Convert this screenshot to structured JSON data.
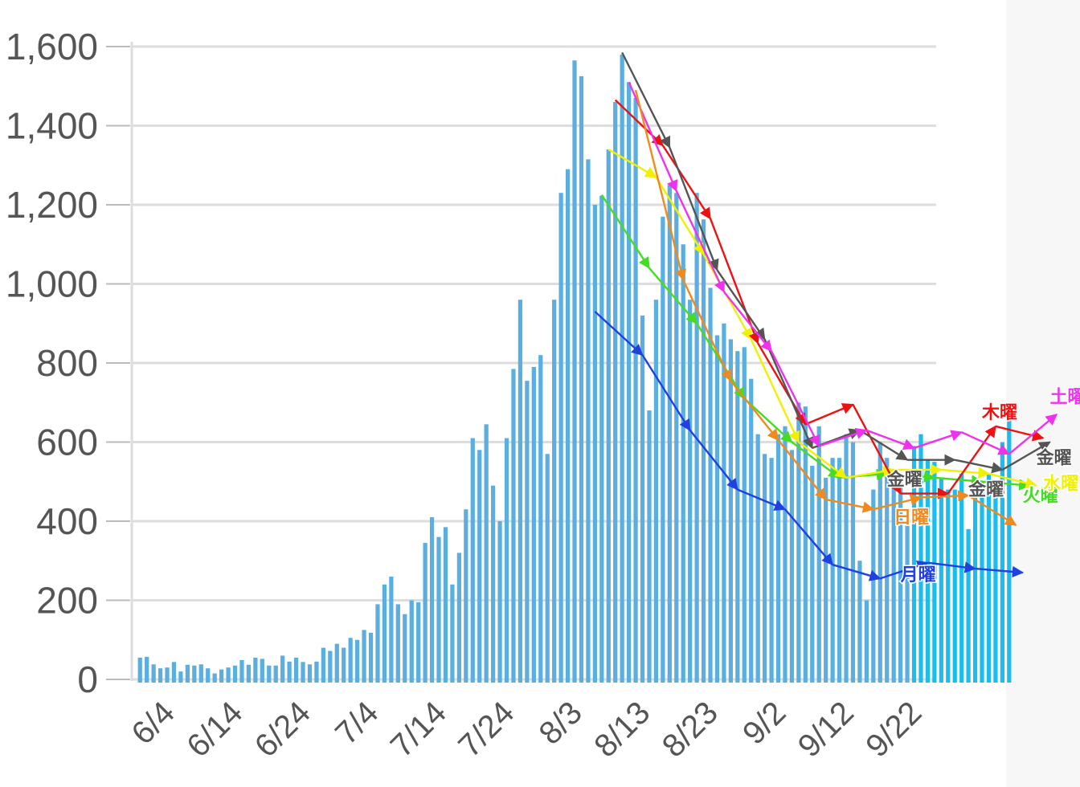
{
  "chart_data": {
    "type": "bar",
    "title": "",
    "xlabel": "",
    "ylabel": "",
    "ylim": [
      0,
      1600
    ],
    "yticks": [
      0,
      200,
      400,
      600,
      800,
      1000,
      1200,
      1400,
      1600
    ],
    "ytick_labels": [
      "0",
      "200",
      "400",
      "600",
      "800",
      "1,000",
      "1,200",
      "1,400",
      "1,600"
    ],
    "grid": true,
    "bar_color": "#5aafe0",
    "recent_bar_color": "#1cbcee",
    "xtick_labels": [
      "6/4",
      "6/14",
      "6/24",
      "7/4",
      "7/14",
      "7/24",
      "8/3",
      "8/13",
      "8/23",
      "9/2",
      "9/12",
      "9/22"
    ],
    "xtick_day_index": [
      3,
      13,
      23,
      33,
      43,
      53,
      63,
      73,
      83,
      93,
      103,
      113
    ],
    "categories_note": "daily, from 6/1",
    "values": [
      55,
      57,
      38,
      28,
      30,
      44,
      20,
      37,
      35,
      38,
      28,
      15,
      25,
      30,
      35,
      49,
      37,
      55,
      52,
      35,
      35,
      60,
      45,
      55,
      44,
      38,
      45,
      80,
      72,
      90,
      80,
      105,
      100,
      125,
      118,
      190,
      240,
      260,
      190,
      165,
      200,
      195,
      345,
      410,
      360,
      385,
      240,
      320,
      430,
      610,
      580,
      645,
      490,
      400,
      610,
      785,
      960,
      755,
      790,
      820,
      570,
      960,
      1230,
      1290,
      1565,
      1525,
      1315,
      1200,
      1223,
      1340,
      1460,
      1580,
      1510,
      1470,
      920,
      680,
      960,
      1170,
      1250,
      1230,
      1100,
      960,
      1230,
      1163,
      990,
      870,
      900,
      860,
      830,
      840,
      760,
      620,
      570,
      560,
      620,
      640,
      580,
      700,
      690,
      540,
      640,
      510,
      560,
      560,
      620,
      600,
      300,
      200,
      480,
      600,
      560,
      510,
      500,
      390
    ],
    "recent_values": [
      590,
      620,
      555,
      550,
      510,
      480,
      480,
      520,
      380,
      480,
      500,
      520,
      480,
      600,
      680
    ],
    "series": [
      {
        "name": "月曜",
        "color": "#2040e0",
        "label_day": 112,
        "label_val": 250,
        "points": [
          [
            67,
            930
          ],
          [
            74,
            820
          ],
          [
            81,
            630
          ],
          [
            88,
            480
          ],
          [
            95,
            430
          ],
          [
            102,
            290
          ],
          [
            109,
            255
          ],
          [
            116,
            295
          ],
          [
            123,
            280
          ],
          [
            130,
            270
          ]
        ]
      },
      {
        "name": "火曜",
        "color": "#44dd22",
        "label_day": 130,
        "label_val": 450,
        "points": [
          [
            68,
            1225
          ],
          [
            75,
            1040
          ],
          [
            82,
            900
          ],
          [
            89,
            710
          ],
          [
            96,
            600
          ],
          [
            103,
            510
          ],
          [
            110,
            520
          ],
          [
            117,
            510
          ],
          [
            124,
            500
          ],
          [
            131,
            490
          ]
        ]
      },
      {
        "name": "水曜",
        "color": "#f0f000",
        "label_day": 133,
        "label_val": 480,
        "points": [
          [
            69,
            1340
          ],
          [
            76,
            1270
          ],
          [
            83,
            1075
          ],
          [
            90,
            860
          ],
          [
            97,
            600
          ],
          [
            104,
            510
          ],
          [
            111,
            530
          ],
          [
            118,
            530
          ],
          [
            125,
            520
          ],
          [
            132,
            490
          ]
        ]
      },
      {
        "name": "木曜",
        "color": "#f01010",
        "label_day": 124,
        "label_val": 660,
        "points": [
          [
            70,
            1465
          ],
          [
            77,
            1350
          ],
          [
            84,
            1165
          ],
          [
            91,
            850
          ],
          [
            98,
            645
          ],
          [
            105,
            695
          ],
          [
            112,
            470
          ],
          [
            119,
            470
          ],
          [
            126,
            640
          ],
          [
            133,
            610
          ]
        ]
      },
      {
        "name": "金曜",
        "color": "#555555",
        "label_day": 132,
        "label_val": 545,
        "points": [
          [
            71,
            1585
          ],
          [
            78,
            1345
          ],
          [
            85,
            1035
          ],
          [
            92,
            860
          ],
          [
            99,
            585
          ],
          [
            106,
            630
          ],
          [
            113,
            555
          ],
          [
            120,
            555
          ],
          [
            127,
            530
          ],
          [
            134,
            600
          ]
        ]
      },
      {
        "name": "金曜",
        "color": "#555555",
        "label_day": 110,
        "label_val": 490,
        "points": []
      },
      {
        "name": "金曜",
        "color": "#555555",
        "label_day": 122,
        "label_val": 465,
        "points": []
      },
      {
        "name": "土曜",
        "color": "#ee33ee",
        "label_day": 134,
        "label_val": 700,
        "points": [
          [
            72,
            1510
          ],
          [
            79,
            1235
          ],
          [
            86,
            980
          ],
          [
            93,
            830
          ],
          [
            100,
            590
          ],
          [
            107,
            630
          ],
          [
            114,
            585
          ],
          [
            121,
            625
          ],
          [
            128,
            570
          ],
          [
            135,
            670
          ]
        ]
      },
      {
        "name": "日曜",
        "color": "#f08a1e",
        "label_day": 111,
        "label_val": 395,
        "points": [
          [
            73,
            1490
          ],
          [
            80,
            1010
          ],
          [
            87,
            755
          ],
          [
            94,
            605
          ],
          [
            101,
            455
          ],
          [
            108,
            430
          ],
          [
            115,
            460
          ],
          [
            122,
            465
          ],
          [
            129,
            390
          ]
        ]
      }
    ]
  }
}
